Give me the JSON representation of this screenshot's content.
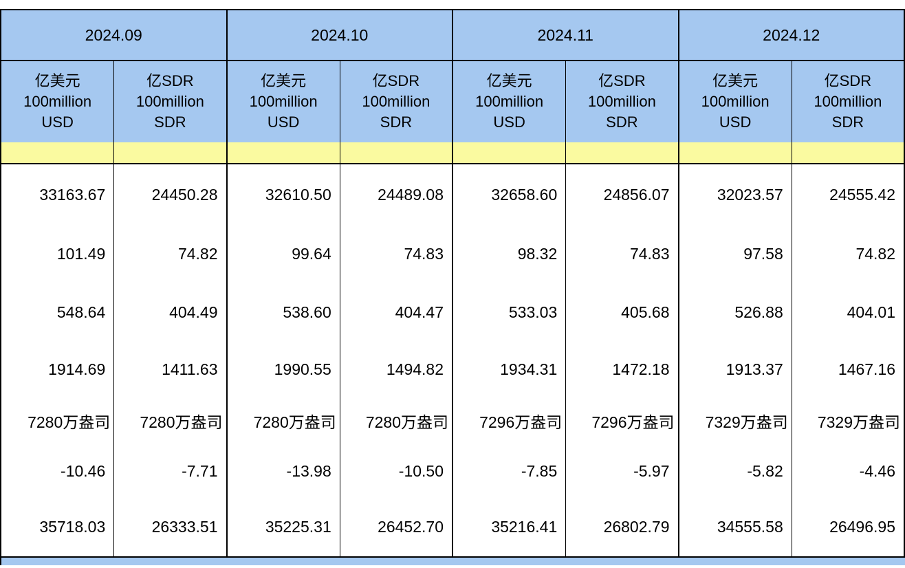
{
  "table": {
    "column_groups": [
      {
        "month": "2024.09",
        "sub_columns": [
          "亿美元\n100million\nUSD",
          "亿SDR\n100million\nSDR"
        ]
      },
      {
        "month": "2024.10",
        "sub_columns": [
          "亿美元\n100million\nUSD",
          "亿SDR\n100million\nSDR"
        ]
      },
      {
        "month": "2024.11",
        "sub_columns": [
          "亿美元\n100million\nUSD",
          "亿SDR\n100million\nSDR"
        ]
      },
      {
        "month": "2024.12",
        "sub_columns": [
          "亿美元\n100million\nUSD",
          "亿SDR\n100million\nSDR"
        ]
      }
    ],
    "rows": [
      {
        "cells": [
          "33163.67",
          "24450.28",
          "32610.50",
          "24489.08",
          "32658.60",
          "24856.07",
          "32023.57",
          "24555.42"
        ]
      },
      {
        "cells": [
          "101.49",
          "74.82",
          "99.64",
          "74.83",
          "98.32",
          "74.83",
          "97.58",
          "74.82"
        ]
      },
      {
        "cells": [
          "548.64",
          "404.49",
          "538.60",
          "404.47",
          "533.03",
          "405.68",
          "526.88",
          "404.01"
        ]
      },
      {
        "cells": [
          "1914.69",
          "1411.63",
          "1990.55",
          "1494.82",
          "1934.31",
          "1472.18",
          "1913.37",
          "1467.16"
        ]
      },
      {
        "cells": [
          "7280万盎司",
          "7280万盎司",
          "7280万盎司",
          "7280万盎司",
          "7296万盎司",
          "7296万盎司",
          "7329万盎司",
          "7329万盎司"
        ]
      },
      {
        "cells": [
          "-10.46",
          "-7.71",
          "-13.98",
          "-10.50",
          "-7.85",
          "-5.97",
          "-5.82",
          "-4.46"
        ]
      },
      {
        "cells": [
          "35718.03",
          "26333.51",
          "35225.31",
          "26452.70",
          "35216.41",
          "26802.79",
          "34555.58",
          "26496.95"
        ]
      }
    ]
  },
  "chart_data": {
    "type": "table",
    "title": "",
    "column_groups": [
      {
        "month": "2024.09",
        "columns": [
          "亿美元 100million USD",
          "亿SDR 100million SDR"
        ]
      },
      {
        "month": "2024.10",
        "columns": [
          "亿美元 100million USD",
          "亿SDR 100million SDR"
        ]
      },
      {
        "month": "2024.11",
        "columns": [
          "亿美元 100million USD",
          "亿SDR 100million SDR"
        ]
      },
      {
        "month": "2024.12",
        "columns": [
          "亿美元 100million USD",
          "亿SDR 100million SDR"
        ]
      }
    ],
    "rows": [
      [
        33163.67,
        24450.28,
        32610.5,
        24489.08,
        32658.6,
        24856.07,
        32023.57,
        24555.42
      ],
      [
        101.49,
        74.82,
        99.64,
        74.83,
        98.32,
        74.83,
        97.58,
        74.82
      ],
      [
        548.64,
        404.49,
        538.6,
        404.47,
        533.03,
        405.68,
        526.88,
        404.01
      ],
      [
        1914.69,
        1411.63,
        1990.55,
        1494.82,
        1934.31,
        1472.18,
        1913.37,
        1467.16
      ],
      [
        "7280万盎司",
        "7280万盎司",
        "7280万盎司",
        "7280万盎司",
        "7296万盎司",
        "7296万盎司",
        "7329万盎司",
        "7329万盎司"
      ],
      [
        -10.46,
        -7.71,
        -13.98,
        -10.5,
        -7.85,
        -5.97,
        -5.82,
        -4.46
      ],
      [
        35718.03,
        26333.51,
        35225.31,
        26452.7,
        35216.41,
        26802.79,
        34555.58,
        26496.95
      ]
    ],
    "layout_hints": {
      "grouped_headers": true,
      "highlight_band_row_after_header": true,
      "values_right_aligned": true
    }
  },
  "colors": {
    "header_blue": "#a5c8f0",
    "band_yellow": "#fafaa0",
    "border": "#000000",
    "cell_white": "#ffffff"
  }
}
